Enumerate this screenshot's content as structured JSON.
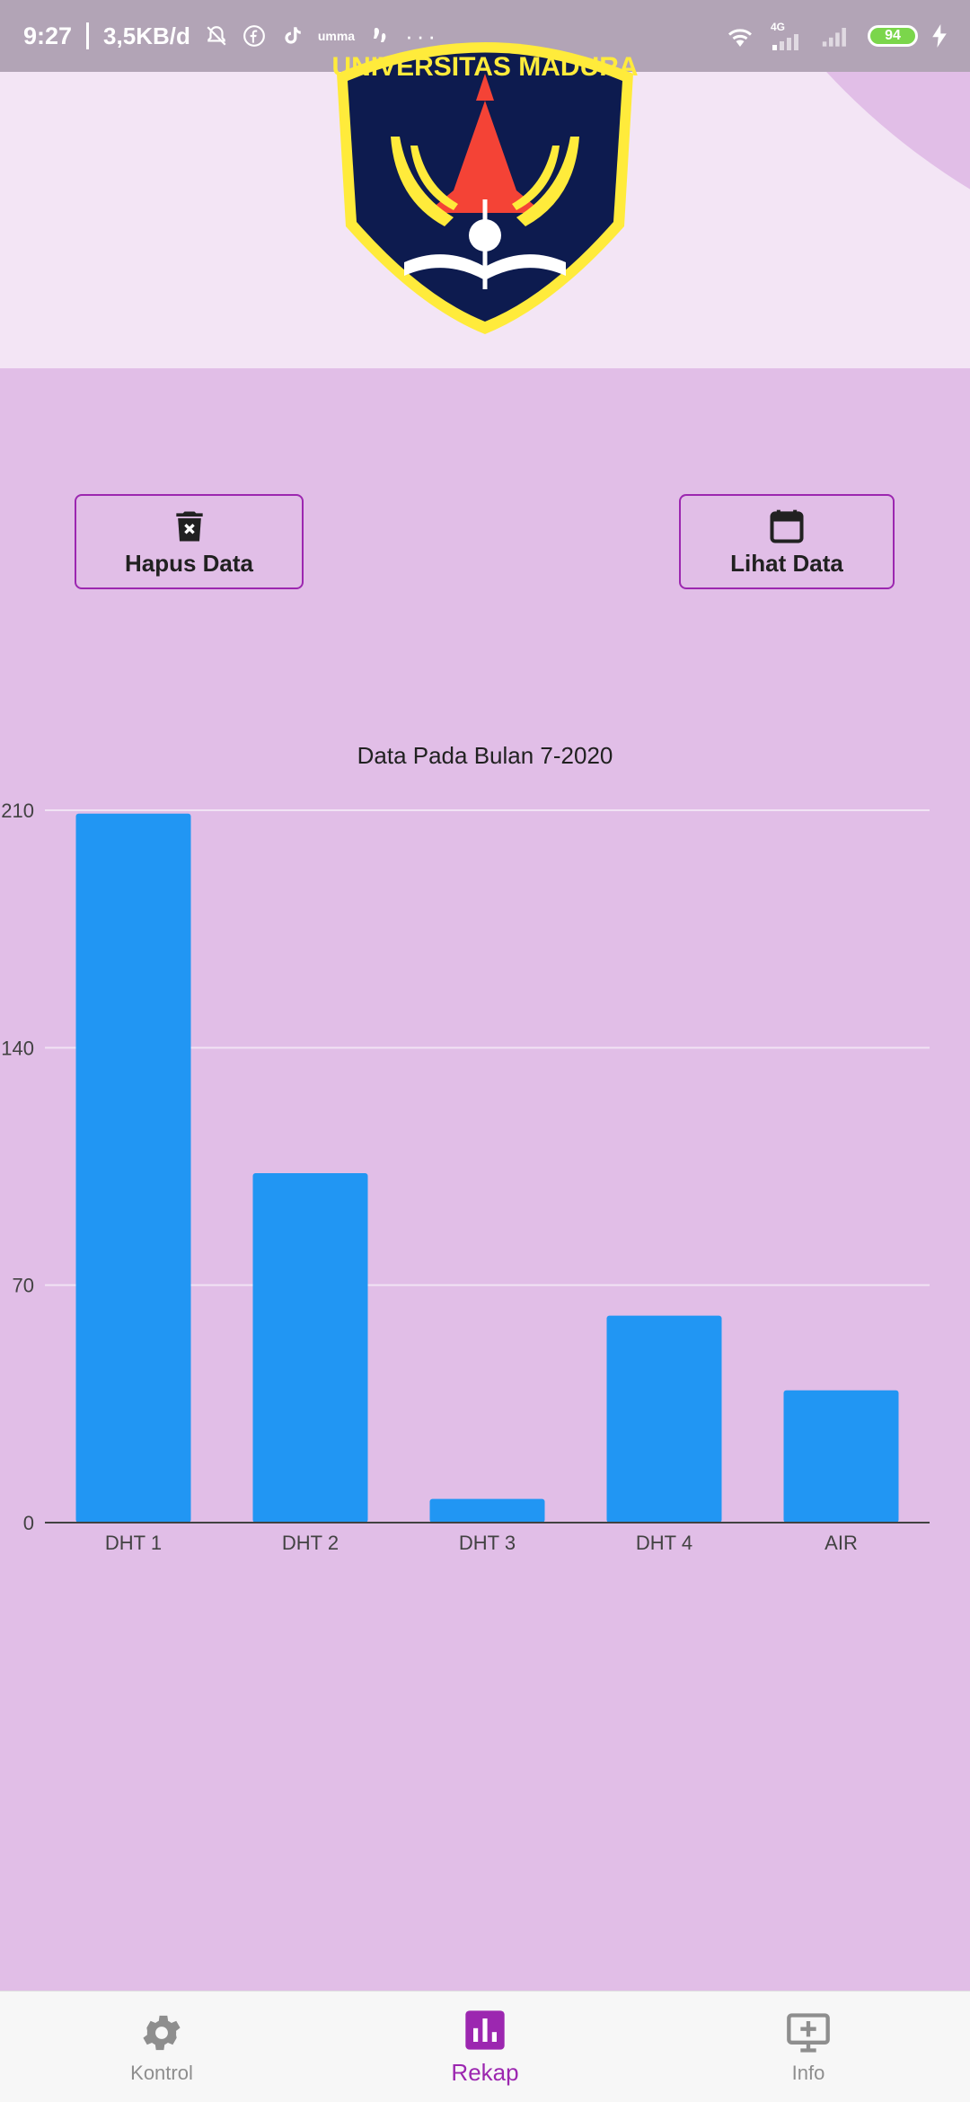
{
  "status_bar": {
    "time": "9:27",
    "speed": "3,5KB/d",
    "network": "4G",
    "battery": "94",
    "icons": [
      "bell-off-icon",
      "facebook-icon",
      "tiktok-icon",
      "umma-icon",
      "foot-icon",
      "more-dots-icon",
      "wifi-icon",
      "signal-icon",
      "signal-icon-2",
      "charging-icon"
    ]
  },
  "header": {
    "logo_text": "UNIVERSITAS MADURA"
  },
  "actions": {
    "delete_label": "Hapus Data",
    "view_label": "Lihat Data"
  },
  "chart_data": {
    "type": "bar",
    "title": "Data Pada Bulan 7-2020",
    "categories": [
      "DHT 1",
      "DHT 2",
      "DHT 3",
      "DHT 4",
      "AIR"
    ],
    "values": [
      209,
      103,
      7,
      61,
      39
    ],
    "ylim": [
      0,
      210
    ],
    "yticks": [
      "0",
      "70",
      "140",
      "210"
    ],
    "grid": true,
    "bar_color": "#2196f3"
  },
  "nav": {
    "items": [
      {
        "label": "Kontrol",
        "icon": "gear-icon"
      },
      {
        "label": "Rekap",
        "icon": "bar-chart-icon"
      },
      {
        "label": "Info",
        "icon": "monitor-plus-icon"
      }
    ],
    "active": "Rekap"
  },
  "colors": {
    "background": "#e1bee7",
    "header": "#f3e5f5",
    "accent": "#9c27b0",
    "bar": "#2196f3"
  }
}
